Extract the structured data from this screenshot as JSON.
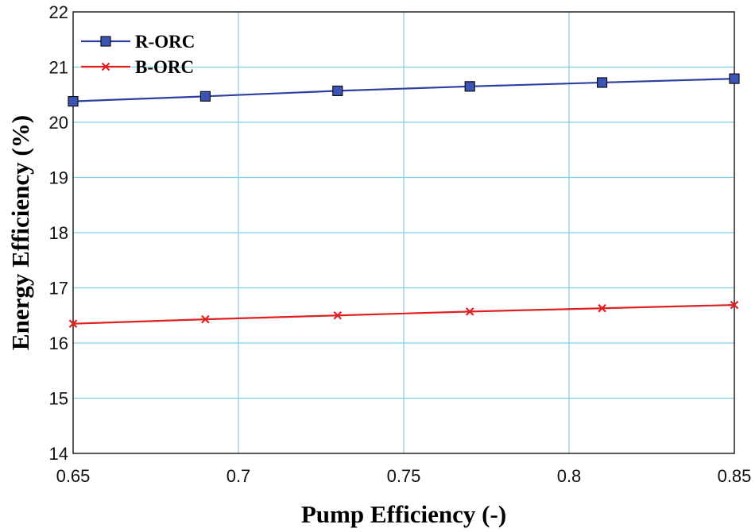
{
  "chart_data": {
    "type": "line",
    "title": "",
    "xlabel": "Pump Efficiency (-)",
    "ylabel": "Energy Efficiency (%)",
    "xlim": [
      0.65,
      0.85
    ],
    "ylim": [
      14,
      22
    ],
    "xticks": [
      0.65,
      0.7,
      0.75,
      0.8,
      0.85
    ],
    "xtick_labels": [
      "0.65",
      "0.7",
      "0.75",
      "0.8",
      "0.85"
    ],
    "yticks": [
      14,
      15,
      16,
      17,
      18,
      19,
      20,
      21,
      22
    ],
    "ytick_labels": [
      "14",
      "15",
      "16",
      "17",
      "18",
      "19",
      "20",
      "21",
      "22"
    ],
    "grid": true,
    "legend_position": "top-left",
    "series": [
      {
        "name": "R-ORC",
        "color": "#2e3f9e",
        "marker": "square",
        "marker_fill": "#3b55b5",
        "x": [
          0.65,
          0.69,
          0.73,
          0.77,
          0.81,
          0.85
        ],
        "y": [
          20.38,
          20.47,
          20.57,
          20.65,
          20.72,
          20.79
        ]
      },
      {
        "name": "B-ORC",
        "color": "#e02020",
        "marker": "x",
        "marker_fill": "#e02020",
        "x": [
          0.65,
          0.69,
          0.73,
          0.77,
          0.81,
          0.85
        ],
        "y": [
          16.35,
          16.43,
          16.5,
          16.57,
          16.63,
          16.69
        ]
      }
    ]
  }
}
